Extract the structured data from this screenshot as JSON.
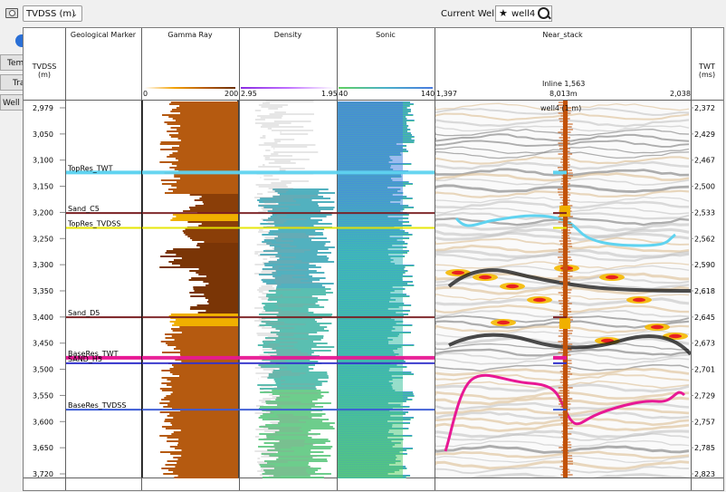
{
  "toolbar": {
    "depth_mode": "TVDSS (m)",
    "current_well_label": "Current Well",
    "current_well_value": "well4"
  },
  "left_tabs": [
    "Tem",
    "Tra",
    "Well C"
  ],
  "columns": {
    "tvdss_header": "TVDSS\n(m)",
    "marker_header": "Geological Marker",
    "gamma_header": "Gamma Ray",
    "density_header": "Density",
    "sonic_header": "Sonic",
    "near_header": "Near_stack",
    "twt_header": "TWT\n(ms)"
  },
  "scales": {
    "gamma_min": "0",
    "gamma_max": "200",
    "density_min": "2.95",
    "density_max": "1.95",
    "sonic_min": "40",
    "sonic_max": "140",
    "seis_left": "1,397",
    "seis_mid": "8,013m",
    "seis_right": "2,038",
    "inline": "Inline 1,563",
    "well_tag": "well4 (1 m)"
  },
  "tvdss_ticks": [
    "2,979",
    "3,050",
    "3,100",
    "3,150",
    "3,200",
    "3,250",
    "3,300",
    "3,350",
    "3,400",
    "3,450",
    "3,500",
    "3,550",
    "3,600",
    "3,650",
    "3,720"
  ],
  "twt_ticks": [
    "2,372",
    "2,429",
    "2,467",
    "2,500",
    "2,533",
    "2,562",
    "2,590",
    "2,618",
    "2,645",
    "2,673",
    "2,701",
    "2,729",
    "2,757",
    "2,785",
    "2,823"
  ],
  "markers": [
    {
      "name": "TopRes_TWT",
      "depth": 3110,
      "color": "#5fd3f0",
      "thick": 4
    },
    {
      "name": "Sand_C5",
      "depth": 3192,
      "color": "#7a1f22",
      "thick": 2
    },
    {
      "name": "TopRes_TVDSS",
      "depth": 3222,
      "color": "#e6e600",
      "thick": 2
    },
    {
      "name": "Sand_D5",
      "depth": 3403,
      "color": "#7a1f22",
      "thick": 2
    },
    {
      "name": "BaseRes_TWT",
      "depth": 3485,
      "color": "#e81894",
      "thick": 4
    },
    {
      "name": "SAND_H5",
      "depth": 3496,
      "color": "#3333cc",
      "thick": 2
    },
    {
      "name": "BaseRes_TVDSS",
      "depth": 3590,
      "color": "#3b5bd6",
      "thick": 2
    }
  ],
  "colors": {
    "gamma_fill": "#b55a10",
    "sonic_top": "#4a7be0",
    "sonic_mid": "#3ab8c0",
    "sonic_bottom": "#5fd060"
  }
}
